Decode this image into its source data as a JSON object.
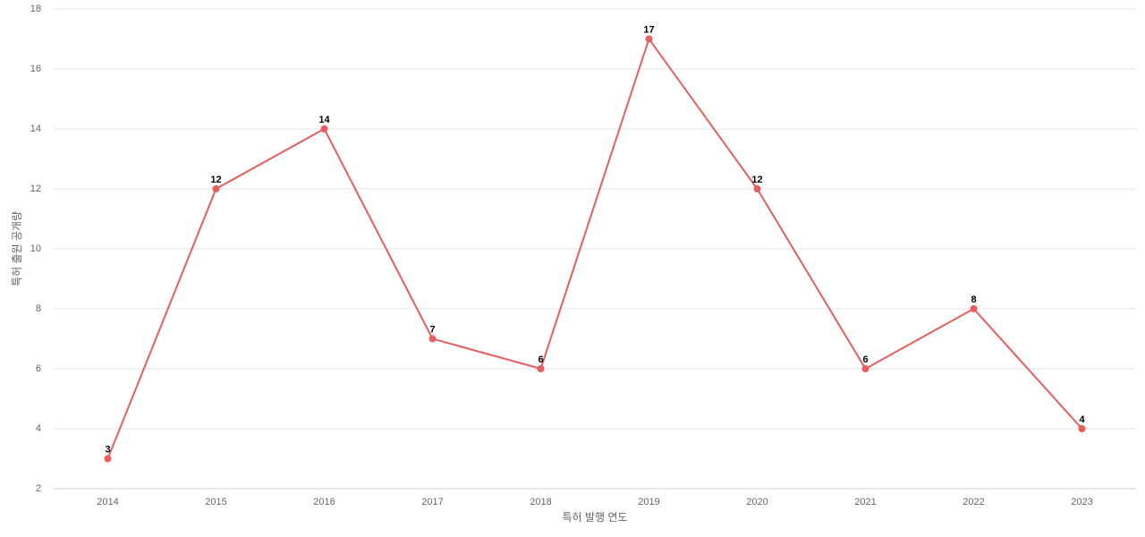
{
  "chart_data": {
    "type": "line",
    "x_label": "특허 발행 연도",
    "y_label": "특허 출원 공개량",
    "categories": [
      "2014",
      "2015",
      "2016",
      "2017",
      "2018",
      "2019",
      "2020",
      "2021",
      "2022",
      "2023"
    ],
    "values": [
      3,
      12,
      14,
      7,
      6,
      17,
      12,
      6,
      8,
      4
    ],
    "color": "#e85d5d",
    "ylim": [
      2,
      18
    ],
    "yticks": [
      2,
      4,
      6,
      8,
      10,
      12,
      14,
      16,
      18
    ],
    "grid": true
  }
}
